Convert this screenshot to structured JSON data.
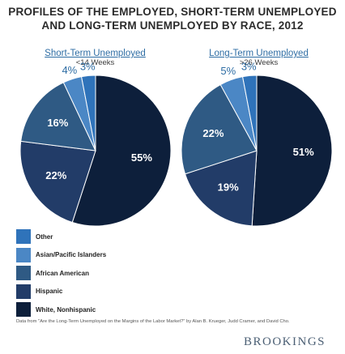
{
  "title_line1": "PROFILES OF THE EMPLOYED, SHORT-TERM UNEMPLOYED",
  "title_line2": "AND LONG-TERM UNEMPLOYED BY RACE, 2012",
  "source": "Data from \"Are the Long-Term Unemployed on the Margins of the Labor Market?\" by Alan B. Krueger, Judd Cramer, and David Cho.",
  "brand": "BROOKINGS",
  "colors": {
    "Other": "#2f73ba",
    "Asian/Pacific Islanders": "#4b87c5",
    "African American": "#2f5a84",
    "Hispanic": "#223c68",
    "White, Nonhispanic": "#0d1f3b"
  },
  "chart_data": {
    "type": "pie",
    "legend": [
      "Other",
      "Asian/Pacific Islanders",
      "African American",
      "Hispanic",
      "White, Nonhispanic"
    ],
    "pies": [
      {
        "title": "Short-Term Unemployed",
        "subtitle": "<14 Weeks",
        "slices": [
          {
            "category": "White, Nonhispanic",
            "value": 55,
            "label": "55%"
          },
          {
            "category": "Hispanic",
            "value": 22,
            "label": "22%"
          },
          {
            "category": "African American",
            "value": 16,
            "label": "16%"
          },
          {
            "category": "Asian/Pacific Islanders",
            "value": 4,
            "label": "4%"
          },
          {
            "category": "Other",
            "value": 3,
            "label": "3%"
          }
        ]
      },
      {
        "title": "Long-Term Unemployed",
        "subtitle": ">26 Weeks",
        "slices": [
          {
            "category": "White, Nonhispanic",
            "value": 51,
            "label": "51%"
          },
          {
            "category": "Hispanic",
            "value": 19,
            "label": "19%"
          },
          {
            "category": "African American",
            "value": 22,
            "label": "22%"
          },
          {
            "category": "Asian/Pacific Islanders",
            "value": 5,
            "label": "5%"
          },
          {
            "category": "Other",
            "value": 3,
            "label": "3%"
          }
        ]
      }
    ]
  }
}
